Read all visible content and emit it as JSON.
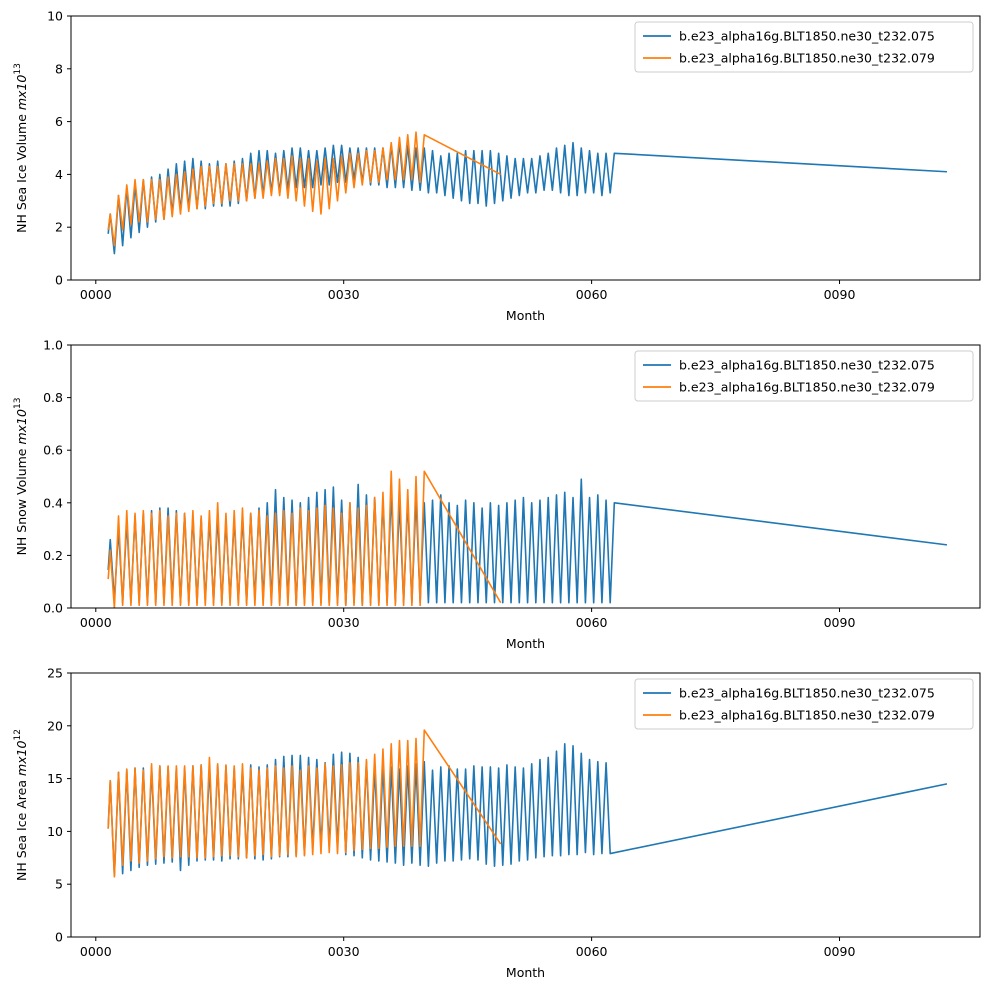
{
  "figure": {
    "background": "#ffffff"
  },
  "chart_data": [
    {
      "type": "line",
      "ylabel": "NH Sea Ice Volume",
      "ylabel_unit": "mx10",
      "ylabel_exp": "13",
      "xlabel": "Month",
      "xlim": [
        -3,
        107
      ],
      "ylim": [
        0,
        10
      ],
      "xticks": [
        0,
        30,
        60,
        90
      ],
      "xtick_labels": [
        "0000",
        "0030",
        "0060",
        "0090"
      ],
      "yticks": [
        0,
        2,
        4,
        6,
        8,
        10
      ],
      "ytick_labels": [
        "0",
        "2",
        "4",
        "6",
        "8",
        "10"
      ],
      "legend_position": "top-right",
      "series": [
        {
          "name": "b.e23_alpha16g.BLT1850.ne30_t232.075",
          "color": "#1f77b4",
          "x_start": 1.5,
          "x_end": 103,
          "peaks": [
            2.5,
            3.2,
            3.5,
            3.6,
            3.8,
            3.9,
            4.0,
            4.2,
            4.4,
            4.5,
            4.6,
            4.5,
            4.4,
            4.5,
            4.4,
            4.5,
            4.6,
            4.8,
            4.9,
            4.9,
            4.8,
            4.9,
            5.0,
            5.0,
            4.9,
            4.9,
            5.0,
            5.1,
            5.1,
            5.0,
            5.0,
            5.0,
            5.0,
            5.0,
            5.1,
            5.2,
            5.1,
            5.0,
            5.0,
            4.9,
            4.7,
            4.8,
            4.8,
            4.9,
            4.9,
            4.9,
            4.9,
            4.8,
            4.7,
            4.6,
            4.6,
            4.6,
            4.7,
            4.8,
            5.0,
            5.1,
            5.2,
            5.0,
            4.9,
            4.8,
            4.8,
            4.8
          ],
          "troughs": [
            1.0,
            1.3,
            1.6,
            1.8,
            2.0,
            2.2,
            2.3,
            2.5,
            2.6,
            2.7,
            2.7,
            2.7,
            2.8,
            2.8,
            2.8,
            2.9,
            3.0,
            3.1,
            3.2,
            3.3,
            3.3,
            3.4,
            3.5,
            3.5,
            3.5,
            3.6,
            3.6,
            3.7,
            3.7,
            3.8,
            3.7,
            3.6,
            3.6,
            3.5,
            3.5,
            3.5,
            3.4,
            3.4,
            3.3,
            3.3,
            3.2,
            3.1,
            3.0,
            2.9,
            2.9,
            2.8,
            2.9,
            3.0,
            3.1,
            3.2,
            3.3,
            3.3,
            3.4,
            3.4,
            3.3,
            3.2,
            3.2,
            3.3,
            3.3,
            3.2,
            3.3
          ],
          "end_value": 4.1
        },
        {
          "name": "b.e23_alpha16g.BLT1850.ne30_t232.079",
          "color": "#ff7f0e",
          "x_start": 1.5,
          "x_end": 49,
          "peaks": [
            2.5,
            3.2,
            3.6,
            3.8,
            3.8,
            3.8,
            3.8,
            3.9,
            4.0,
            4.1,
            4.2,
            4.3,
            4.3,
            4.3,
            4.4,
            4.4,
            4.4,
            4.4,
            4.4,
            4.5,
            4.6,
            4.6,
            4.7,
            4.6,
            4.6,
            4.5,
            4.6,
            4.6,
            4.7,
            4.8,
            4.8,
            4.9,
            4.9,
            5.0,
            5.2,
            5.4,
            5.5,
            5.6,
            5.5
          ],
          "troughs": [
            1.3,
            1.9,
            2.1,
            2.2,
            2.2,
            2.3,
            2.3,
            2.4,
            2.5,
            2.6,
            2.7,
            2.8,
            2.9,
            2.9,
            3.0,
            3.0,
            3.0,
            3.1,
            3.1,
            3.2,
            3.2,
            3.1,
            3.0,
            2.8,
            2.6,
            2.5,
            2.7,
            3.0,
            3.3,
            3.5,
            3.6,
            3.7,
            3.7,
            3.8,
            3.8,
            3.8,
            3.8,
            3.7
          ],
          "end_value": 4.0
        }
      ]
    },
    {
      "type": "line",
      "ylabel": "NH Snow Volume",
      "ylabel_unit": "mx10",
      "ylabel_exp": "13",
      "xlabel": "Month",
      "xlim": [
        -3,
        107
      ],
      "ylim": [
        0,
        1.0
      ],
      "xticks": [
        0,
        30,
        60,
        90
      ],
      "xtick_labels": [
        "0000",
        "0030",
        "0060",
        "0090"
      ],
      "yticks": [
        0,
        0.2,
        0.4,
        0.6,
        0.8,
        1.0
      ],
      "ytick_labels": [
        "0.0",
        "0.2",
        "0.4",
        "0.6",
        "0.8",
        "1.0"
      ],
      "legend_position": "top-right",
      "series": [
        {
          "name": "b.e23_alpha16g.BLT1850.ne30_t232.075",
          "color": "#1f77b4",
          "x_start": 1.5,
          "x_end": 103,
          "peaks": [
            0.26,
            0.3,
            0.33,
            0.35,
            0.36,
            0.37,
            0.38,
            0.38,
            0.37,
            0.36,
            0.35,
            0.34,
            0.34,
            0.35,
            0.33,
            0.34,
            0.35,
            0.36,
            0.38,
            0.4,
            0.45,
            0.42,
            0.41,
            0.4,
            0.42,
            0.44,
            0.45,
            0.46,
            0.41,
            0.4,
            0.47,
            0.43,
            0.42,
            0.41,
            0.44,
            0.4,
            0.41,
            0.42,
            0.4,
            0.41,
            0.43,
            0.4,
            0.39,
            0.41,
            0.4,
            0.38,
            0.4,
            0.39,
            0.4,
            0.41,
            0.42,
            0.4,
            0.41,
            0.42,
            0.43,
            0.44,
            0.42,
            0.49,
            0.42,
            0.43,
            0.41,
            0.4
          ],
          "troughs": [
            0.03,
            0.02,
            0.02,
            0.02,
            0.02,
            0.02,
            0.02,
            0.03,
            0.02,
            0.02,
            0.02,
            0.03,
            0.02,
            0.02,
            0.03,
            0.02,
            0.02,
            0.03,
            0.03,
            0.02,
            0.02,
            0.02,
            0.01,
            0.02,
            0.02,
            0.02,
            0.02,
            0.02,
            0.01,
            0.02,
            0.01,
            0.02,
            0.02,
            0.02,
            0.02,
            0.02,
            0.02,
            0.02,
            0.02,
            0.02,
            0.02,
            0.02,
            0.02,
            0.02,
            0.02,
            0.02,
            0.02,
            0.02,
            0.02,
            0.02,
            0.02,
            0.02,
            0.02,
            0.02,
            0.02,
            0.02,
            0.02,
            0.02,
            0.02,
            0.02,
            0.02
          ],
          "end_value": 0.24
        },
        {
          "name": "b.e23_alpha16g.BLT1850.ne30_t232.079",
          "color": "#ff7f0e",
          "x_start": 1.5,
          "x_end": 49,
          "peaks": [
            0.22,
            0.35,
            0.37,
            0.36,
            0.37,
            0.36,
            0.37,
            0.35,
            0.36,
            0.36,
            0.37,
            0.35,
            0.37,
            0.4,
            0.36,
            0.37,
            0.38,
            0.36,
            0.37,
            0.35,
            0.36,
            0.37,
            0.36,
            0.38,
            0.37,
            0.38,
            0.39,
            0.38,
            0.36,
            0.4,
            0.38,
            0.39,
            0.42,
            0.44,
            0.52,
            0.49,
            0.45,
            0.5,
            0.52
          ],
          "troughs": [
            0.0,
            0.01,
            0.01,
            0.01,
            0.01,
            0.01,
            0.01,
            0.01,
            0.01,
            0.01,
            0.01,
            0.01,
            0.01,
            0.01,
            0.01,
            0.01,
            0.01,
            0.01,
            0.01,
            0.01,
            0.01,
            0.01,
            0.01,
            0.01,
            0.01,
            0.01,
            0.01,
            0.01,
            0.01,
            0.01,
            0.01,
            0.01,
            0.01,
            0.01,
            0.01,
            0.01,
            0.01,
            0.01
          ],
          "end_value": 0.02
        }
      ]
    },
    {
      "type": "line",
      "ylabel": "NH Sea Ice Area",
      "ylabel_unit": "mx10",
      "ylabel_exp": "12",
      "xlabel": "Month",
      "xlim": [
        -3,
        107
      ],
      "ylim": [
        0,
        25
      ],
      "xticks": [
        0,
        30,
        60,
        90
      ],
      "xtick_labels": [
        "0000",
        "0030",
        "0060",
        "0090"
      ],
      "yticks": [
        0,
        5,
        10,
        15,
        20,
        25
      ],
      "ytick_labels": [
        "0",
        "5",
        "10",
        "15",
        "20",
        "25"
      ],
      "legend_position": "top-right",
      "series": [
        {
          "name": "b.e23_alpha16g.BLT1850.ne30_t232.075",
          "color": "#1f77b4",
          "x_start": 1.5,
          "x_end": 103,
          "peaks": [
            14.8,
            15.6,
            15.8,
            16.0,
            16.0,
            16.0,
            16.2,
            16.1,
            16.0,
            16.0,
            16.2,
            16.3,
            16.0,
            16.3,
            16.2,
            16.0,
            15.9,
            16.3,
            16.1,
            16.3,
            16.8,
            17.1,
            17.2,
            17.2,
            17.0,
            16.8,
            16.5,
            17.3,
            17.5,
            17.4,
            17.0,
            16.6,
            16.0,
            16.2,
            16.1,
            15.9,
            16.2,
            16.4,
            16.6,
            15.8,
            16.1,
            16.2,
            15.9,
            15.9,
            16.2,
            16.1,
            16.1,
            16.0,
            16.3,
            16.1,
            16.0,
            16.4,
            16.8,
            17.0,
            17.6,
            18.3,
            18.1,
            17.4,
            16.8,
            16.6,
            16.5
          ],
          "troughs": [
            5.8,
            6.0,
            6.3,
            6.6,
            6.8,
            6.9,
            7.0,
            7.1,
            6.3,
            6.8,
            7.2,
            7.3,
            7.3,
            7.2,
            7.4,
            7.4,
            7.5,
            7.4,
            7.3,
            7.4,
            7.6,
            7.6,
            7.7,
            7.8,
            8.4,
            8.6,
            8.6,
            8.4,
            7.8,
            7.7,
            7.5,
            7.3,
            7.2,
            7.1,
            7.0,
            6.8,
            7.0,
            6.8,
            6.7,
            7.0,
            7.2,
            7.2,
            7.3,
            7.4,
            7.3,
            6.9,
            6.7,
            6.8,
            6.9,
            7.2,
            7.3,
            7.5,
            7.6,
            7.7,
            7.7,
            7.8,
            7.8,
            8.0,
            7.8,
            7.9,
            7.9
          ],
          "end_value": 14.5
        },
        {
          "name": "b.e23_alpha16g.BLT1850.ne30_t232.079",
          "color": "#ff7f0e",
          "x_start": 1.5,
          "x_end": 49,
          "peaks": [
            14.8,
            15.6,
            15.9,
            16.0,
            15.8,
            16.4,
            16.2,
            16.2,
            16.2,
            16.2,
            16.2,
            16.3,
            17.0,
            16.4,
            16.3,
            16.2,
            16.4,
            16.0,
            15.8,
            16.0,
            16.2,
            16.0,
            16.2,
            15.8,
            16.2,
            16.0,
            16.4,
            16.2,
            16.3,
            16.5,
            16.5,
            16.8,
            17.3,
            17.8,
            18.3,
            18.6,
            18.6,
            18.8,
            19.6
          ],
          "troughs": [
            5.7,
            6.8,
            7.2,
            7.0,
            7.2,
            7.4,
            7.6,
            7.5,
            7.6,
            7.6,
            7.5,
            7.5,
            7.6,
            7.7,
            7.7,
            7.6,
            7.5,
            7.7,
            7.8,
            7.6,
            7.7,
            7.8,
            7.6,
            7.7,
            7.8,
            7.9,
            8.0,
            7.9,
            8.0,
            8.2,
            8.3,
            8.4,
            8.4,
            8.5,
            8.6,
            8.6,
            8.6,
            8.6
          ],
          "end_value": 8.8
        }
      ]
    }
  ]
}
